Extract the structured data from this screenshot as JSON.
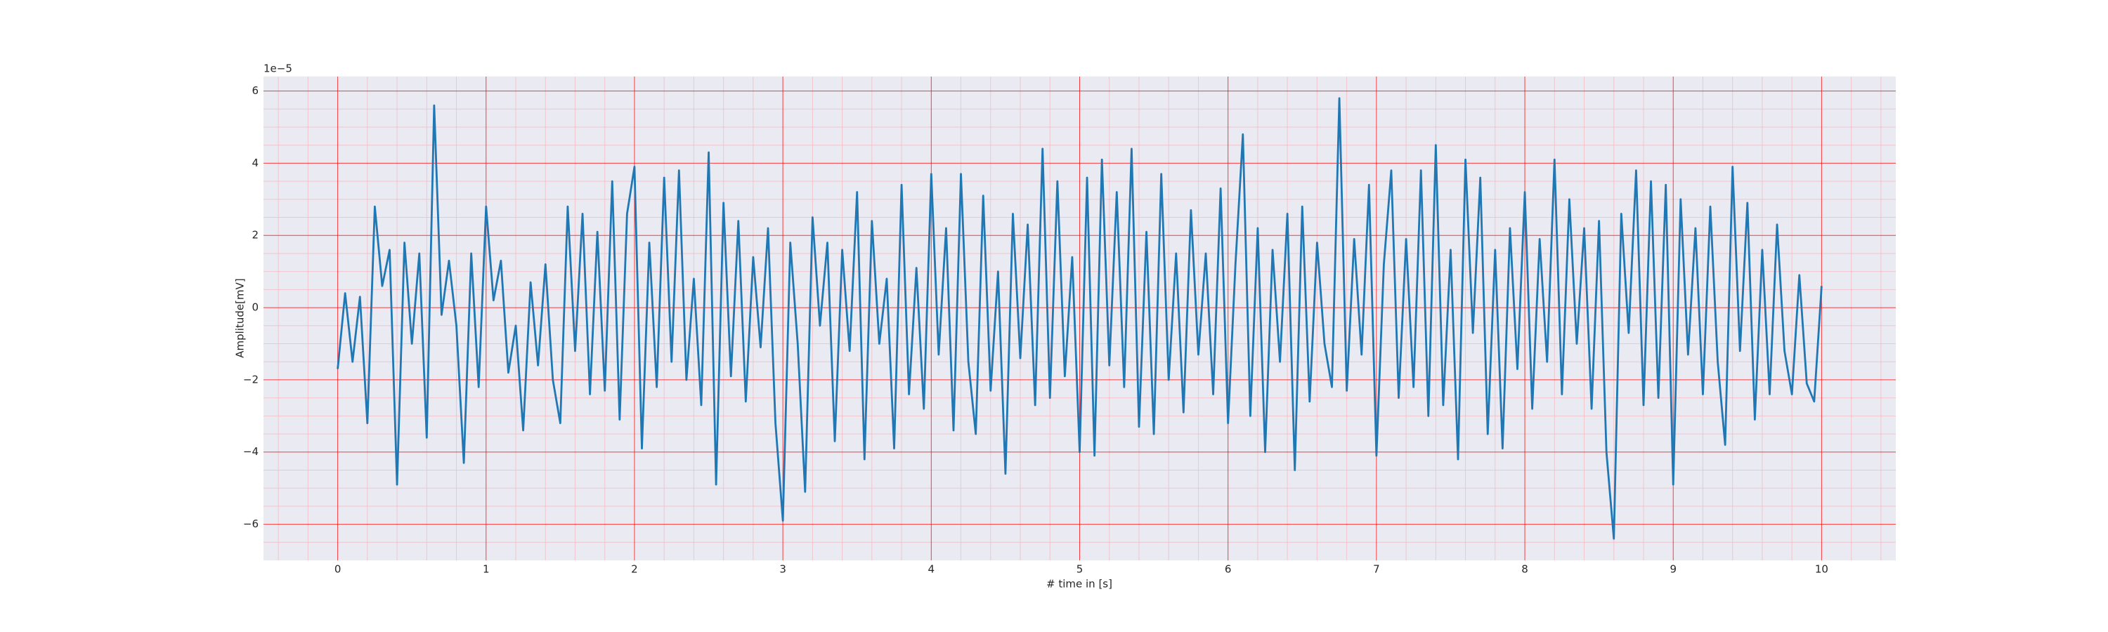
{
  "chart_data": {
    "type": "line",
    "xlabel": "# time in [s]",
    "ylabel": "Amplitude[mV]",
    "offset_label": "1e−5",
    "color": "#1f77b4",
    "background": "#eaeaf2",
    "grid": true,
    "grid_color": "#ff0000",
    "minor_grid": true,
    "minor_grid_color": "#f6b6bd",
    "xlim": [
      -0.5,
      10.5
    ],
    "ylim": [
      -7.0,
      6.4
    ],
    "xticks": [
      0,
      1,
      2,
      3,
      4,
      5,
      6,
      7,
      8,
      9,
      10
    ],
    "yticks": [
      {
        "value": -6,
        "label": "−6"
      },
      {
        "value": -4,
        "label": "−4"
      },
      {
        "value": -2,
        "label": "−2"
      },
      0,
      2,
      4,
      6
    ],
    "xminorticks": [
      -0.4,
      -0.2,
      0.2,
      0.4,
      0.6,
      0.8,
      1.2,
      1.4,
      1.6,
      1.8,
      2.2,
      2.4,
      2.6,
      2.8,
      3.2,
      3.4,
      3.6,
      3.8,
      4.2,
      4.4,
      4.6,
      4.8,
      5.2,
      5.4,
      5.6,
      5.8,
      6.2,
      6.4,
      6.6,
      6.8,
      7.2,
      7.4,
      7.6,
      7.8,
      8.2,
      8.4,
      8.6,
      8.8,
      9.2,
      9.4,
      9.6,
      9.8,
      10.2,
      10.4
    ],
    "yminorticks": [
      -6.5,
      -5.5,
      -5,
      -4.5,
      -3.5,
      -3,
      -2.5,
      -1.5,
      -1,
      -0.5,
      0.5,
      1,
      1.5,
      2.5,
      3,
      3.5,
      4.5,
      5,
      5.5
    ],
    "x": [
      0,
      0.05,
      0.1,
      0.15,
      0.2,
      0.25,
      0.3,
      0.35,
      0.4,
      0.45,
      0.5,
      0.55,
      0.6,
      0.65,
      0.7,
      0.75,
      0.8,
      0.85,
      0.9,
      0.95,
      1,
      1.05,
      1.1,
      1.15,
      1.2,
      1.25,
      1.3,
      1.35,
      1.4,
      1.45,
      1.5,
      1.55,
      1.6,
      1.65,
      1.7,
      1.75,
      1.8,
      1.85,
      1.9,
      1.95,
      2,
      2.05,
      2.1,
      2.15,
      2.2,
      2.25,
      2.3,
      2.35,
      2.4,
      2.45,
      2.5,
      2.55,
      2.6,
      2.65,
      2.7,
      2.75,
      2.8,
      2.85,
      2.9,
      2.95,
      3,
      3.05,
      3.1,
      3.15,
      3.2,
      3.25,
      3.3,
      3.35,
      3.4,
      3.45,
      3.5,
      3.55,
      3.6,
      3.65,
      3.7,
      3.75,
      3.8,
      3.85,
      3.9,
      3.95,
      4,
      4.05,
      4.1,
      4.15,
      4.2,
      4.25,
      4.3,
      4.35,
      4.4,
      4.45,
      4.5,
      4.55,
      4.6,
      4.65,
      4.7,
      4.75,
      4.8,
      4.85,
      4.9,
      4.95,
      5,
      5.05,
      5.1,
      5.15,
      5.2,
      5.25,
      5.3,
      5.35,
      5.4,
      5.45,
      5.5,
      5.55,
      5.6,
      5.65,
      5.7,
      5.75,
      5.8,
      5.85,
      5.9,
      5.95,
      6,
      6.05,
      6.1,
      6.15,
      6.2,
      6.25,
      6.3,
      6.35,
      6.4,
      6.45,
      6.5,
      6.55,
      6.6,
      6.65,
      6.7,
      6.75,
      6.8,
      6.85,
      6.9,
      6.95,
      7,
      7.05,
      7.1,
      7.15,
      7.2,
      7.25,
      7.3,
      7.35,
      7.4,
      7.45,
      7.5,
      7.55,
      7.6,
      7.65,
      7.7,
      7.75,
      7.8,
      7.85,
      7.9,
      7.95,
      8,
      8.05,
      8.1,
      8.15,
      8.2,
      8.25,
      8.3,
      8.35,
      8.4,
      8.45,
      8.5,
      8.55,
      8.6,
      8.65,
      8.7,
      8.75,
      8.8,
      8.85,
      8.9,
      8.95,
      9,
      9.05,
      9.1,
      9.15,
      9.2,
      9.25,
      9.3,
      9.35,
      9.4,
      9.45,
      9.5,
      9.55,
      9.6,
      9.65,
      9.7,
      9.75,
      9.8,
      9.85,
      9.9,
      9.95,
      10
    ],
    "values": [
      -1.7,
      0.4,
      -1.5,
      0.3,
      -3.2,
      2.8,
      0.6,
      1.6,
      -4.9,
      1.8,
      -1.0,
      1.5,
      -3.6,
      5.6,
      -0.2,
      1.3,
      -0.5,
      -4.3,
      1.5,
      -2.2,
      2.8,
      0.2,
      1.3,
      -1.8,
      -0.5,
      -3.4,
      0.7,
      -1.6,
      1.2,
      -2.0,
      -3.2,
      2.8,
      -1.2,
      2.6,
      -2.4,
      2.1,
      -2.3,
      3.5,
      -3.1,
      2.6,
      3.9,
      -3.9,
      1.8,
      -2.2,
      3.6,
      -1.5,
      3.8,
      -2.0,
      0.8,
      -2.7,
      4.3,
      -4.9,
      2.9,
      -1.9,
      2.4,
      -2.6,
      1.4,
      -1.1,
      2.2,
      -3.2,
      -5.9,
      1.8,
      -1.0,
      -5.1,
      2.5,
      -0.5,
      1.8,
      -3.7,
      1.6,
      -1.2,
      3.2,
      -4.2,
      2.4,
      -1.0,
      0.8,
      -3.9,
      3.4,
      -2.4,
      1.1,
      -2.8,
      3.7,
      -1.3,
      2.2,
      -3.4,
      3.7,
      -1.5,
      -3.5,
      3.1,
      -2.3,
      1.0,
      -4.6,
      2.6,
      -1.4,
      2.3,
      -2.7,
      4.4,
      -2.5,
      3.5,
      -1.9,
      1.4,
      -4.0,
      3.6,
      -4.1,
      4.1,
      -1.6,
      3.2,
      -2.2,
      4.4,
      -3.3,
      2.1,
      -3.5,
      3.7,
      -2.0,
      1.5,
      -2.9,
      2.7,
      -1.3,
      1.5,
      -2.4,
      3.3,
      -3.2,
      1.2,
      4.8,
      -3.0,
      2.2,
      -4.0,
      1.6,
      -1.5,
      2.6,
      -4.5,
      2.8,
      -2.6,
      1.8,
      -1.0,
      -2.2,
      5.8,
      -2.3,
      1.9,
      -1.3,
      3.4,
      -4.1,
      1.2,
      3.8,
      -2.5,
      1.9,
      -2.2,
      3.8,
      -3.0,
      4.5,
      -2.7,
      1.6,
      -4.2,
      4.1,
      -0.7,
      3.6,
      -3.5,
      1.6,
      -3.9,
      2.2,
      -1.7,
      3.2,
      -2.8,
      1.9,
      -1.5,
      4.1,
      -2.4,
      3.0,
      -1.0,
      2.2,
      -2.8,
      2.4,
      -4.0,
      -6.4,
      2.6,
      -0.7,
      3.8,
      -2.7,
      3.5,
      -2.5,
      3.4,
      -4.9,
      3.0,
      -1.3,
      2.2,
      -2.4,
      2.8,
      -1.5,
      -3.8,
      3.9,
      -1.2,
      2.9,
      -3.1,
      1.6,
      -2.4,
      2.3,
      -1.2,
      -2.4,
      0.9,
      -2.1,
      -2.6,
      0.6
    ]
  }
}
